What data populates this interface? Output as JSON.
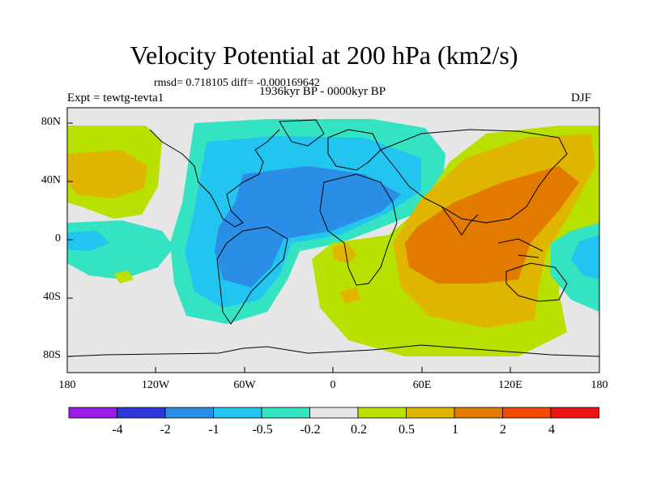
{
  "title": "Velocity Potential at 200 hPa (km2/s)",
  "stats": "rmsd= 0.718105 diff= -0.000169642",
  "experiment": "Expt = tewtg-tevta1",
  "period": "1936kyr BP - 0000kyr BP",
  "season": "DJF",
  "axes": {
    "y_ticks": [
      "80N",
      "40N",
      "0",
      "40S",
      "80S"
    ],
    "x_ticks": [
      "180",
      "120W",
      "60W",
      "0",
      "60E",
      "120E",
      "180"
    ]
  },
  "colorbar": {
    "labels": [
      "-4",
      "-2",
      "-1",
      "-0.5",
      "-0.2",
      "0.2",
      "0.5",
      "1",
      "2",
      "4"
    ],
    "colors": [
      "#9a1ce8",
      "#2b37d8",
      "#2a8ee6",
      "#22c4f0",
      "#33e3c1",
      "#e6e6e6",
      "#b9e100",
      "#e0b500",
      "#e27a00",
      "#f24a00",
      "#ee1414"
    ]
  },
  "map_colors": {
    "neutral": "#e6e6e6",
    "pos1": "#b9e100",
    "pos2": "#e0b500",
    "pos3": "#e27a00",
    "neg1": "#33e3c1",
    "neg2": "#22c4f0",
    "neg3": "#2a8ee6"
  }
}
